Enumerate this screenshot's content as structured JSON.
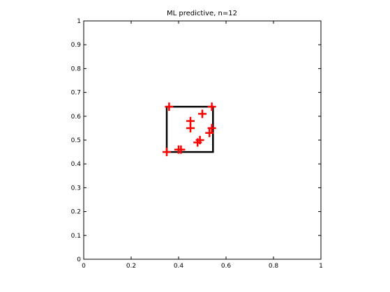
{
  "chart_data": {
    "type": "scatter",
    "title": "ML predictive, n=12",
    "xlabel": "",
    "ylabel": "",
    "xlim": [
      0,
      1
    ],
    "ylim": [
      0,
      1
    ],
    "grid": false,
    "x_ticks": [
      {
        "value": 0,
        "label": "0"
      },
      {
        "value": 0.2,
        "label": "0.2"
      },
      {
        "value": 0.4,
        "label": "0.4"
      },
      {
        "value": 0.6,
        "label": "0.6"
      },
      {
        "value": 0.8,
        "label": "0.8"
      },
      {
        "value": 1,
        "label": "1"
      }
    ],
    "y_ticks": [
      {
        "value": 0,
        "label": "0"
      },
      {
        "value": 0.1,
        "label": "0.1"
      },
      {
        "value": 0.2,
        "label": "0.2"
      },
      {
        "value": 0.3,
        "label": "0.3"
      },
      {
        "value": 0.4,
        "label": "0.4"
      },
      {
        "value": 0.5,
        "label": "0.5"
      },
      {
        "value": 0.6,
        "label": "0.6"
      },
      {
        "value": 0.7,
        "label": "0.7"
      },
      {
        "value": 0.8,
        "label": "0.8"
      },
      {
        "value": 0.9,
        "label": "0.9"
      },
      {
        "value": 1,
        "label": "1"
      }
    ],
    "points": [
      {
        "x": 0.35,
        "y": 0.45
      },
      {
        "x": 0.36,
        "y": 0.64
      },
      {
        "x": 0.4,
        "y": 0.46
      },
      {
        "x": 0.41,
        "y": 0.46
      },
      {
        "x": 0.45,
        "y": 0.58
      },
      {
        "x": 0.45,
        "y": 0.55
      },
      {
        "x": 0.48,
        "y": 0.49
      },
      {
        "x": 0.49,
        "y": 0.5
      },
      {
        "x": 0.5,
        "y": 0.61
      },
      {
        "x": 0.53,
        "y": 0.53
      },
      {
        "x": 0.54,
        "y": 0.55
      },
      {
        "x": 0.54,
        "y": 0.64
      }
    ],
    "bounding_box": {
      "x_min": 0.35,
      "x_max": 0.545,
      "y_min": 0.45,
      "y_max": 0.64
    },
    "colors": {
      "points": "#ff0000",
      "box": "#000000",
      "axes": "#000000"
    }
  }
}
